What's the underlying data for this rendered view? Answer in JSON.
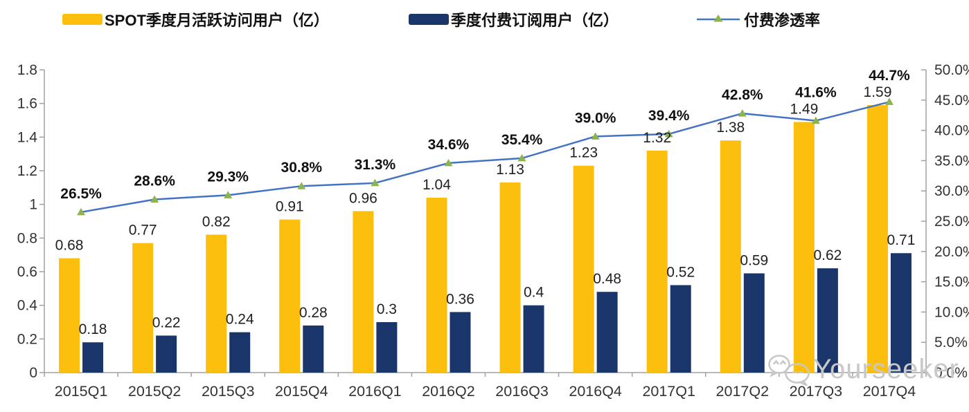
{
  "chart_data": {
    "type": "combo-bar-line",
    "title": "",
    "categories": [
      "2015Q1",
      "2015Q2",
      "2015Q3",
      "2015Q4",
      "2016Q1",
      "2016Q2",
      "2016Q3",
      "2016Q4",
      "2017Q1",
      "2017Q2",
      "2017Q3",
      "2017Q4"
    ],
    "series": [
      {
        "name": "SPOT季度月活跃访问用户（亿）",
        "type": "bar",
        "axis": "left",
        "color": "#FCBF0E",
        "values": [
          0.68,
          0.77,
          0.82,
          0.91,
          0.96,
          1.04,
          1.13,
          1.23,
          1.32,
          1.38,
          1.49,
          1.59
        ],
        "labels": [
          "0.68",
          "0.77",
          "0.82",
          "0.91",
          "0.96",
          "1.04",
          "1.13",
          "1.23",
          "1.32",
          "1.38",
          "1.49",
          "1.59"
        ]
      },
      {
        "name": "季度付费订阅用户（亿）",
        "type": "bar",
        "axis": "left",
        "color": "#1A3569",
        "values": [
          0.18,
          0.22,
          0.24,
          0.28,
          0.3,
          0.36,
          0.4,
          0.48,
          0.52,
          0.59,
          0.62,
          0.71
        ],
        "labels": [
          "0.18",
          "0.22",
          "0.24",
          "0.28",
          "0.3",
          "0.36",
          "0.4",
          "0.48",
          "0.52",
          "0.59",
          "0.62",
          "0.71"
        ]
      },
      {
        "name": "付费渗透率",
        "type": "line",
        "axis": "right",
        "color": "#4472C4",
        "marker": "triangle",
        "marker_color": "#8CB44A",
        "values": [
          26.5,
          28.6,
          29.3,
          30.8,
          31.3,
          34.6,
          35.4,
          39.0,
          39.4,
          42.8,
          41.6,
          44.7
        ],
        "labels": [
          "26.5%",
          "28.6%",
          "29.3%",
          "30.8%",
          "31.3%",
          "34.6%",
          "35.4%",
          "39.0%",
          "39.4%",
          "42.8%",
          "41.6%",
          "44.7%"
        ]
      }
    ],
    "left_axis": {
      "min": 0,
      "max": 1.8,
      "tick_labels": [
        "0",
        "0.2",
        "0.4",
        "0.6",
        "0.8",
        "1",
        "1.2",
        "1.4",
        "1.6",
        "1.8"
      ]
    },
    "right_axis": {
      "min": 0,
      "max": 50,
      "tick_labels": [
        "0.0%",
        "5.0%",
        "10.0%",
        "15.0%",
        "20.0%",
        "25.0%",
        "30.0%",
        "35.0%",
        "40.0%",
        "45.0%",
        "50.0%"
      ]
    },
    "grid": false,
    "legend_position": "top"
  },
  "colors": {
    "axis_line": "#A0A0A0",
    "tick_text": "#333333",
    "value_label_text": "#1F1F1F",
    "percent_label_text": "#111111",
    "watermark": "#C8C8C8"
  },
  "watermark": {
    "text": "Yourseeker",
    "icon": "wechat-icon"
  }
}
